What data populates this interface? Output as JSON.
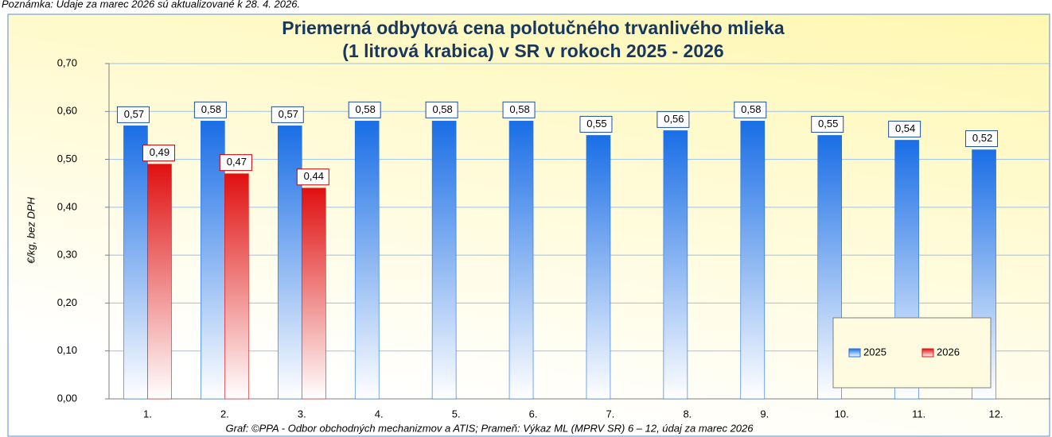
{
  "note": "Poznámka: Údaje za marec 2026 sú aktualizované k 28. 4. 2026.",
  "chart_data": {
    "type": "bar",
    "title": [
      "Priemerná odbytová cena polotučného trvanlivého mlieka",
      "(1 litrová krabica) v SR v rokoch 2025 - 2026"
    ],
    "y_label": "€/kg, bez DPH",
    "caption": "Graf: ©PPA - Odbor obchodných mechanizmov a ATIS; Prameň: Výkaz ML (MPRV SR) 6 – 12, údaj za marec 2026",
    "categories": [
      "1.",
      "2.",
      "3.",
      "4.",
      "5.",
      "6.",
      "7.",
      "8.",
      "9.",
      "10.",
      "11.",
      "12."
    ],
    "series": [
      {
        "name": "2025",
        "color": "#1a6ee6",
        "values": [
          0.57,
          0.58,
          0.57,
          0.58,
          0.58,
          0.58,
          0.55,
          0.56,
          0.58,
          0.55,
          0.54,
          0.52
        ],
        "value_labels": [
          "0,57",
          "0,58",
          "0,57",
          "0,58",
          "0,58",
          "0,58",
          "0,55",
          "0,56",
          "0,58",
          "0,55",
          "0,54",
          "0,52"
        ]
      },
      {
        "name": "2026",
        "color": "#e01010",
        "values": [
          0.49,
          0.47,
          0.44,
          null,
          null,
          null,
          null,
          null,
          null,
          null,
          null,
          null
        ],
        "value_labels": [
          "0,49",
          "0,47",
          "0,44",
          null,
          null,
          null,
          null,
          null,
          null,
          null,
          null,
          null
        ]
      }
    ],
    "ylim": [
      0,
      0.7
    ],
    "yticks": [
      {
        "value": 0,
        "label": "0,00"
      },
      {
        "value": 0.1,
        "label": "0,10"
      },
      {
        "value": 0.2,
        "label": "0,20"
      },
      {
        "value": 0.3,
        "label": "0,30"
      },
      {
        "value": 0.4,
        "label": "0,40"
      },
      {
        "value": 0.5,
        "label": "0,50"
      },
      {
        "value": 0.6,
        "label": "0,60"
      },
      {
        "value": 0.7,
        "label": "0,70"
      }
    ],
    "grid": true,
    "legend": "bottom-right"
  }
}
